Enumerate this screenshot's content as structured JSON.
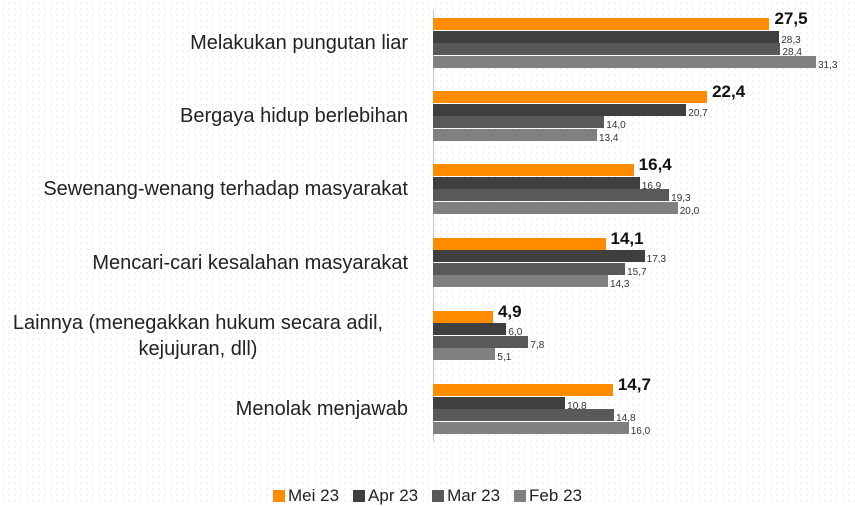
{
  "chart_data": {
    "type": "hbar",
    "categories": [
      "Melakukan pungutan liar",
      "Bergaya hidup berlebihan",
      "Sewenang-wenang terhadap masyarakat",
      "Mencari-cari kesalahan masyarakat",
      "Lainnya (menegakkan hukum secara adil, kejujuran, dll)",
      "Menolak menjawab"
    ],
    "series": [
      {
        "name": "Mei 23",
        "color": "#ff8c00",
        "values": [
          27.5,
          22.4,
          16.4,
          14.1,
          4.9,
          14.7
        ],
        "value_labels": [
          "27,5",
          "22,4",
          "16,4",
          "14,1",
          "4,9",
          "14,7"
        ]
      },
      {
        "name": "Apr 23",
        "color": "#3f3f3f",
        "values": [
          28.3,
          20.7,
          16.9,
          17.3,
          6.0,
          10.8
        ],
        "value_labels": [
          "28,3",
          "20,7",
          "16,9",
          "17,3",
          "6,0",
          "10,8"
        ]
      },
      {
        "name": "Mar 23",
        "color": "#595959",
        "values": [
          28.4,
          14.0,
          19.3,
          15.7,
          7.8,
          14.8
        ],
        "value_labels": [
          "28,4",
          "14,0",
          "19,3",
          "15,7",
          "7,8",
          "14,8"
        ]
      },
      {
        "name": "Feb 23",
        "color": "#808080",
        "values": [
          31.3,
          13.4,
          20.0,
          14.3,
          5.1,
          16.0
        ],
        "value_labels": [
          "31,3",
          "13,4",
          "20,0",
          "14,3",
          "5,1",
          "16,0"
        ]
      }
    ],
    "xlim": [
      0,
      34
    ],
    "legend": "bottom"
  }
}
